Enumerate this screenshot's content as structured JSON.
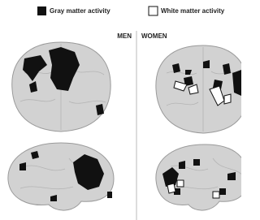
{
  "legend": {
    "gray": "Gray matter activity",
    "white": "White matter activity"
  },
  "columns": {
    "men": "MEN",
    "women": "WOMEN"
  }
}
